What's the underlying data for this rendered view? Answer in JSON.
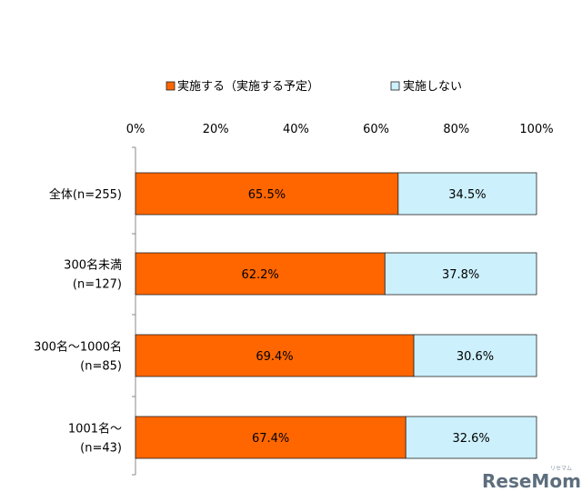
{
  "chart_data": {
    "type": "bar",
    "orientation": "horizontal",
    "stacked": true,
    "percent_scale": true,
    "categories": [
      [
        "全体(n=255)"
      ],
      [
        "300名未満",
        "(n=127)"
      ],
      [
        "300名～1000名",
        "(n=85)"
      ],
      [
        "1001名～",
        "(n=43)"
      ]
    ],
    "series": [
      {
        "name": "実施する（実施する予定）",
        "values": [
          65.5,
          62.2,
          69.4,
          67.4
        ],
        "labels": [
          "65.5%",
          "62.2%",
          "69.4%",
          "67.4%"
        ],
        "color": "#ff6600"
      },
      {
        "name": "実施しない",
        "values": [
          34.5,
          37.8,
          30.6,
          32.6
        ],
        "labels": [
          "34.5%",
          "37.8%",
          "30.6%",
          "32.6%"
        ],
        "color": "#ccf0fc"
      }
    ],
    "xlim": [
      0,
      100
    ],
    "xticks": [
      "0%",
      "20%",
      "40%",
      "60%",
      "80%",
      "100%"
    ],
    "grid": false,
    "legend_position": "top"
  },
  "watermark": {
    "text": "ReseMom",
    "kana": "リセマム"
  },
  "colors": {
    "bar_border": "#222222",
    "axis": "#888888"
  }
}
